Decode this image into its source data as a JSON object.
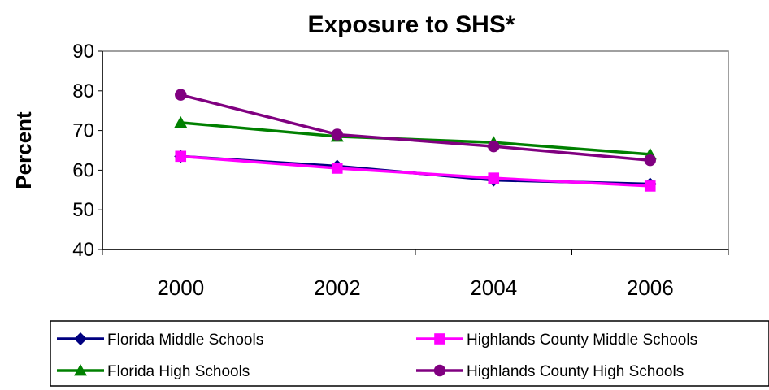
{
  "chart_data": {
    "type": "line",
    "title": "Exposure to SHS*",
    "xlabel": "",
    "ylabel": "Percent",
    "x": [
      "2000",
      "2002",
      "2004",
      "2006"
    ],
    "ylim": [
      40,
      90
    ],
    "yticks": [
      40,
      50,
      60,
      70,
      80,
      90
    ],
    "grid": false,
    "legend_position": "bottom",
    "series": [
      {
        "name": "Florida Middle Schools",
        "values": [
          63.5,
          61.0,
          57.5,
          56.5
        ],
        "color": "#000080",
        "marker": "diamond"
      },
      {
        "name": "Highlands County Middle Schools",
        "values": [
          63.5,
          60.5,
          58.0,
          56.0
        ],
        "color": "#FF00FF",
        "marker": "square"
      },
      {
        "name": "Florida High Schools",
        "values": [
          72.0,
          68.5,
          67.0,
          64.0
        ],
        "color": "#008000",
        "marker": "triangle"
      },
      {
        "name": "Highlands County High Schools",
        "values": [
          79.0,
          69.0,
          66.0,
          62.5
        ],
        "color": "#800080",
        "marker": "circle"
      }
    ]
  }
}
